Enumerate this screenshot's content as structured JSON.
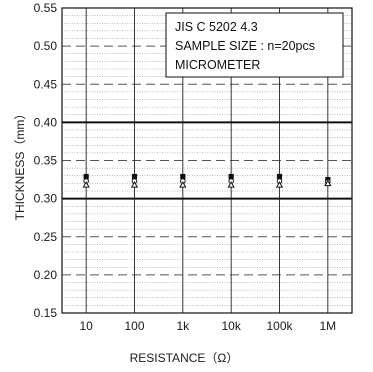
{
  "chart_data": {
    "type": "scatter",
    "title": "",
    "xlabel": "RESISTANCE（Ω）",
    "ylabel": "THICKNESS（mm）",
    "categories": [
      "10",
      "100",
      "1k",
      "10k",
      "100k",
      "1M"
    ],
    "ylim": [
      0.15,
      0.55
    ],
    "y_ticks": [
      "0.15",
      "0.20",
      "0.25",
      "0.30",
      "0.35",
      "0.40",
      "0.45",
      "0.50",
      "0.55"
    ],
    "annotation_lines": [
      "JIS C 5202 4.3",
      "SAMPLE SIZE : n=20pcs",
      "MICROMETER"
    ],
    "spec_limits": {
      "upper": 0.4,
      "lower": 0.3
    },
    "series": [
      {
        "marker": "max",
        "values": [
          0.329,
          0.329,
          0.329,
          0.329,
          0.329,
          0.325
        ]
      },
      {
        "marker": "avg",
        "values": [
          0.323,
          0.323,
          0.323,
          0.323,
          0.323,
          0.322
        ]
      },
      {
        "marker": "min",
        "values": [
          0.318,
          0.318,
          0.318,
          0.318,
          0.318,
          0.32
        ]
      }
    ],
    "grid": true,
    "legend": "none"
  },
  "colors": {
    "ink": "#111111",
    "grid_dash": "#555555",
    "grid_dot": "#777777",
    "background": "#ffffff"
  }
}
